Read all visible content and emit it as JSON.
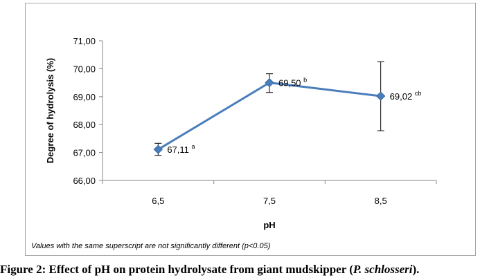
{
  "chart_data": {
    "type": "line",
    "categories": [
      "6,5",
      "7,5",
      "8,5"
    ],
    "series": [
      {
        "values": [
          67.11,
          69.5,
          69.02
        ],
        "error_low": [
          66.9,
          69.15,
          67.78
        ],
        "error_high": [
          67.33,
          69.82,
          70.25
        ],
        "value_labels": [
          "67,11",
          "69,50",
          "69,02"
        ],
        "superscripts": [
          "a",
          "b",
          "cb"
        ],
        "color": "#4a7ebb"
      }
    ],
    "xlabel": "pH",
    "ylabel": "Degree of hydrolysis (%)",
    "ylim": [
      66,
      71
    ],
    "yticks": [
      "66,00",
      "67,00",
      "68,00",
      "69,00",
      "70,00",
      "71,00"
    ],
    "grid": false,
    "legend": "none"
  },
  "note": "Values with the same superscript are not significantly different (p<0.05)",
  "caption": {
    "prefix": "Figure 2: Effect of pH on protein hydrolysate from giant mudskipper (",
    "species": "P. schlosseri",
    "suffix": ")."
  }
}
